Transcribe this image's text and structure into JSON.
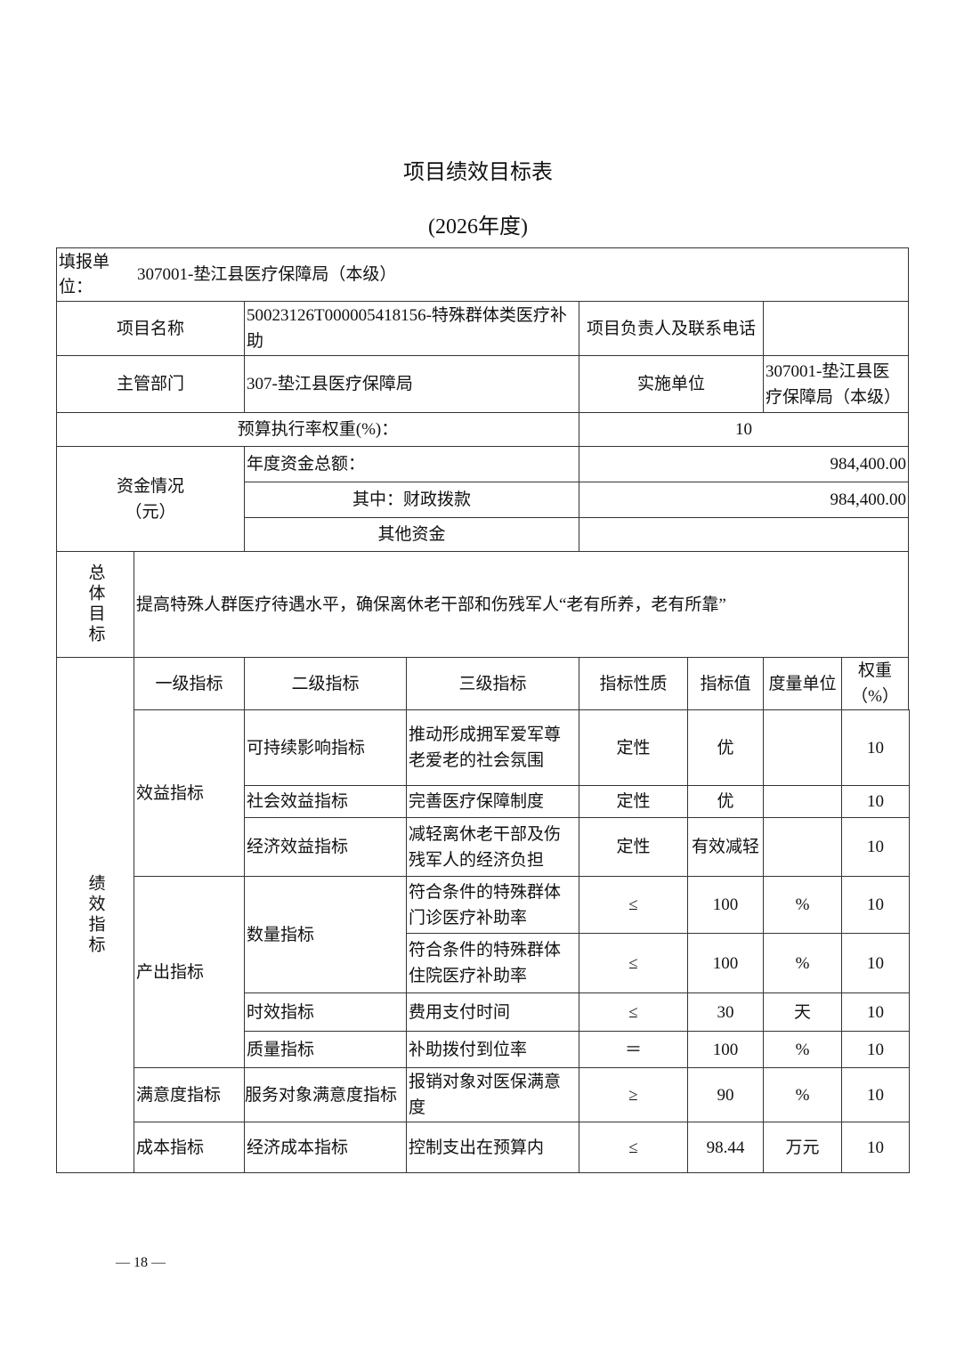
{
  "title": "项目绩效目标表",
  "subtitle": "(2026年度)",
  "unit_label": "填报单位：",
  "unit_value": "307001-垫江县医疗保障局（本级）",
  "project_name_label": "项目名称",
  "project_name": "50023126T000005418156-特殊群体类医疗补助",
  "contact_label": "项目负责人及联系电话",
  "contact_value": "",
  "dept_label": "主管部门",
  "dept_value": "307-垫江县医疗保障局",
  "impl_label": "实施单位",
  "impl_value": "307001-垫江县医疗保障局（本级）",
  "budget_weight_label": "预算执行率权重(%)：",
  "budget_weight": "10",
  "funds_label": "资金情况（元）",
  "funds": [
    {
      "label": "年度资金总额：",
      "value": "984,400.00"
    },
    {
      "label": "其中：财政拨款",
      "value": "984,400.00"
    },
    {
      "label": "其他资金",
      "value": ""
    }
  ],
  "goal_label": "总体目标",
  "goal_text": "提高特殊人群医疗待遇水平，确保离休老干部和伤残军人“老有所养，老有所靠”",
  "perf_label": "绩效指标",
  "headers": [
    "一级指标",
    "二级指标",
    "三级指标",
    "指标性质",
    "指标值",
    "度量单位",
    "权重（%）"
  ],
  "level1": [
    "效益指标",
    "产出指标",
    "满意度指标",
    "成本指标"
  ],
  "level2": [
    "可持续影响指标",
    "社会效益指标",
    "经济效益指标",
    "数量指标",
    "时效指标",
    "质量指标",
    "服务对象满意度指标",
    "经济成本指标"
  ],
  "rows": [
    {
      "l3": "推动形成拥军爱军尊老爱老的社会氛围",
      "nature": "定性",
      "value": "优",
      "unit": "",
      "weight": "10"
    },
    {
      "l3": "完善医疗保障制度",
      "nature": "定性",
      "value": "优",
      "unit": "",
      "weight": "10"
    },
    {
      "l3": "减轻离休老干部及伤残军人的经济负担",
      "nature": "定性",
      "value": "有效减轻",
      "unit": "",
      "weight": "10"
    },
    {
      "l3": "符合条件的特殊群体门诊医疗补助率",
      "nature": "≤",
      "value": "100",
      "unit": "%",
      "weight": "10"
    },
    {
      "l3": "符合条件的特殊群体住院医疗补助率",
      "nature": "≤",
      "value": "100",
      "unit": "%",
      "weight": "10"
    },
    {
      "l3": "费用支付时间",
      "nature": "≤",
      "value": "30",
      "unit": "天",
      "weight": "10"
    },
    {
      "l3": "补助拨付到位率",
      "nature": "＝",
      "value": "100",
      "unit": "%",
      "weight": "10"
    },
    {
      "l3": "报销对象对医保满意度",
      "nature": "≥",
      "value": "90",
      "unit": "%",
      "weight": "10"
    },
    {
      "l3": "控制支出在预算内",
      "nature": "≤",
      "value": "98.44",
      "unit": "万元",
      "weight": "10"
    }
  ],
  "page_number": "— 18 —"
}
